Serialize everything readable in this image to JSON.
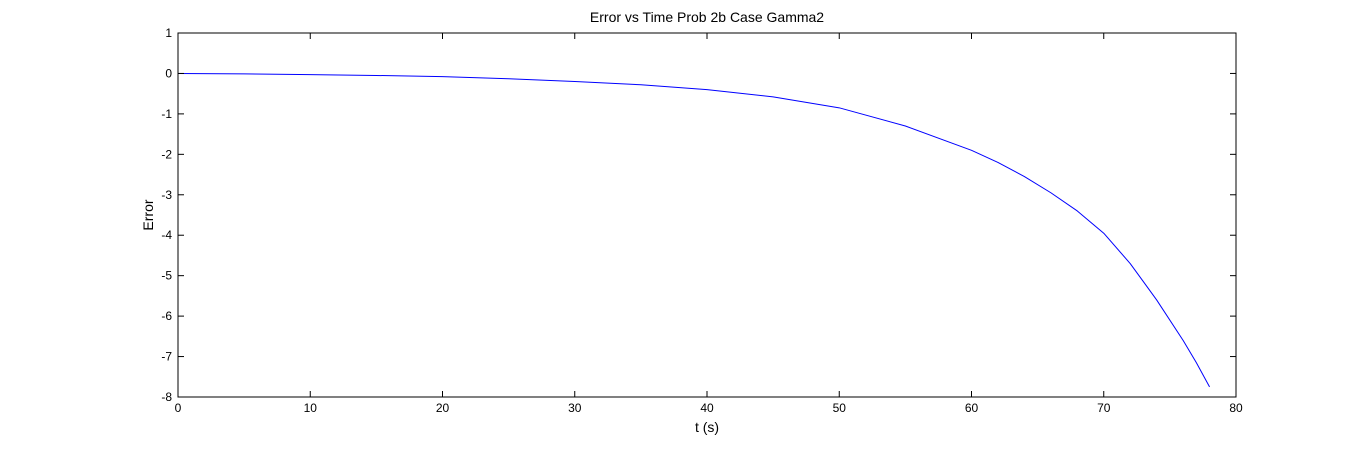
{
  "chart_data": {
    "type": "line",
    "title": "Error vs Time Prob 2b Case Gamma2",
    "xlabel": "t (s)",
    "ylabel": "Error",
    "xlim": [
      0,
      80
    ],
    "ylim": [
      -8,
      1
    ],
    "xticks": [
      0,
      10,
      20,
      30,
      40,
      50,
      60,
      70,
      80
    ],
    "yticks": [
      1,
      0,
      -1,
      -2,
      -3,
      -4,
      -5,
      -6,
      -7,
      -8
    ],
    "grid": false,
    "legend": "none",
    "series": [
      {
        "color": "#0000ff",
        "x": [
          0,
          5,
          10,
          15,
          20,
          25,
          30,
          35,
          40,
          45,
          50,
          55,
          60,
          62,
          64,
          66,
          68,
          70,
          72,
          74,
          76,
          77,
          78
        ],
        "y": [
          0,
          -0.01,
          -0.03,
          -0.05,
          -0.08,
          -0.13,
          -0.2,
          -0.28,
          -0.4,
          -0.58,
          -0.85,
          -1.3,
          -1.9,
          -2.2,
          -2.55,
          -2.95,
          -3.4,
          -3.95,
          -4.7,
          -5.6,
          -6.6,
          -7.15,
          -7.75
        ]
      }
    ]
  }
}
